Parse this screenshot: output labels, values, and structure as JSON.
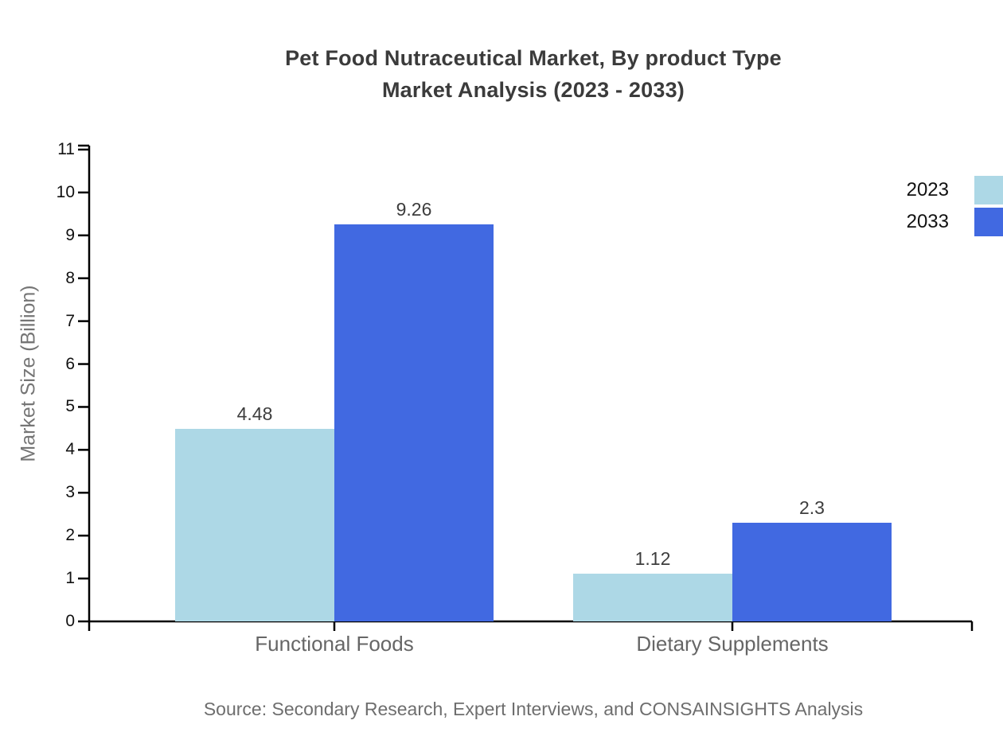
{
  "chart_data": {
    "type": "bar",
    "title_line1": "Pet Food Nutraceutical Market, By product Type",
    "title_line2": "Market Analysis (2023 - 2033)",
    "ylabel": "Market Size (Billion)",
    "xlabel": "",
    "categories": [
      "Functional Foods",
      "Dietary Supplements"
    ],
    "series": [
      {
        "name": "2023",
        "color": "#add8e6",
        "values": [
          4.48,
          1.12
        ],
        "value_labels": [
          "4.48",
          "1.12"
        ]
      },
      {
        "name": "2033",
        "color": "#4169e1",
        "values": [
          9.26,
          2.3
        ],
        "value_labels": [
          "9.26",
          "2.3"
        ]
      }
    ],
    "ylim": [
      0,
      11
    ],
    "yticks": [
      0,
      1,
      2,
      3,
      4,
      5,
      6,
      7,
      8,
      9,
      10,
      11
    ],
    "grid": false,
    "legend_position": "top-right",
    "source": "Source: Secondary Research, Expert Interviews, and CONSAINSIGHTS Analysis",
    "colors": {
      "axis_line": "#000000",
      "tick_label": "#111111",
      "category_label": "#666666",
      "value_label": "#3d3d3d",
      "title": "#3b3b3b",
      "axis_title": "#757575",
      "source": "#6e6e6e",
      "background": "#ffffff"
    }
  }
}
